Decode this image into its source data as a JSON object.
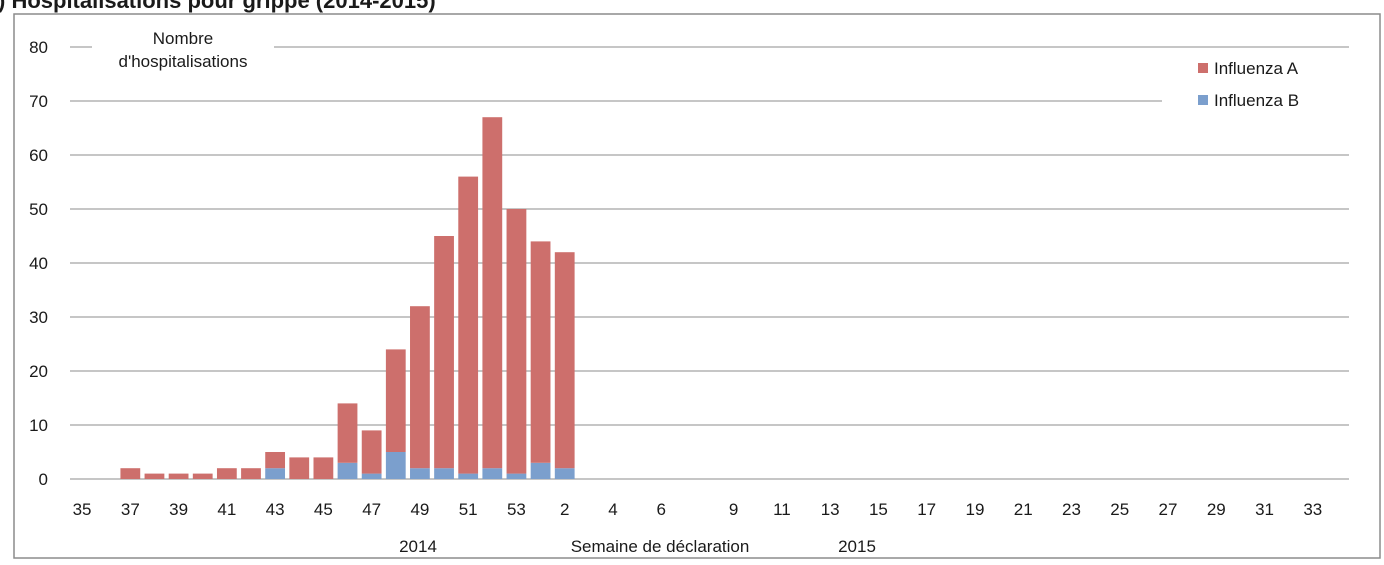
{
  "chart_data": {
    "type": "bar",
    "stacked": true,
    "title_fragment": ") Hospitalisations pour grippe (2014-2015)",
    "ylabel": "Nombre d'hospitalisations",
    "ylabel_lines": [
      "Nombre",
      "d'hospitalisations"
    ],
    "xlabel": "Semaine de déclaration",
    "year_labels": [
      "2014",
      "2015"
    ],
    "ylim": [
      0,
      80
    ],
    "yticks": [
      0,
      10,
      20,
      30,
      40,
      50,
      60,
      70,
      80
    ],
    "grid": true,
    "legend_position": "top-right",
    "categories": [
      "35",
      "36",
      "37",
      "38",
      "39",
      "40",
      "41",
      "42",
      "43",
      "44",
      "45",
      "46",
      "47",
      "48",
      "49",
      "50",
      "51",
      "52",
      "53",
      "1",
      "2",
      "3",
      "4",
      "5",
      "6",
      "7",
      "8",
      "9",
      "10",
      "11",
      "12",
      "13",
      "14",
      "15",
      "16",
      "17",
      "18",
      "19",
      "20",
      "21",
      "22",
      "23",
      "24",
      "25",
      "26",
      "27",
      "28",
      "29",
      "30",
      "31",
      "32",
      "33",
      "34"
    ],
    "category_tick_labels": [
      "35",
      "37",
      "39",
      "41",
      "43",
      "45",
      "47",
      "49",
      "51",
      "53",
      "2",
      "4",
      "6",
      "9",
      "11",
      "13",
      "15",
      "17",
      "19",
      "21",
      "23",
      "25",
      "27",
      "29",
      "31",
      "33"
    ],
    "series": [
      {
        "name": "Influenza B",
        "color": "#7b9fcd",
        "values": [
          0,
          0,
          0,
          0,
          0,
          0,
          0,
          0,
          2,
          0,
          0,
          3,
          1,
          5,
          2,
          2,
          1,
          2,
          1,
          3,
          2,
          0,
          0,
          0,
          0,
          0,
          0,
          0,
          0,
          0,
          0,
          0,
          0,
          0,
          0,
          0,
          0,
          0,
          0,
          0,
          0,
          0,
          0,
          0,
          0,
          0,
          0,
          0,
          0,
          0,
          0,
          0,
          0
        ]
      },
      {
        "name": "Influenza A",
        "color": "#cd6f6c",
        "values": [
          0,
          0,
          2,
          1,
          1,
          1,
          2,
          2,
          3,
          4,
          4,
          11,
          8,
          19,
          30,
          43,
          55,
          65,
          49,
          41,
          40,
          0,
          0,
          0,
          0,
          0,
          0,
          0,
          0,
          0,
          0,
          0,
          0,
          0,
          0,
          0,
          0,
          0,
          0,
          0,
          0,
          0,
          0,
          0,
          0,
          0,
          0,
          0,
          0,
          0,
          0,
          0,
          0
        ]
      }
    ]
  }
}
